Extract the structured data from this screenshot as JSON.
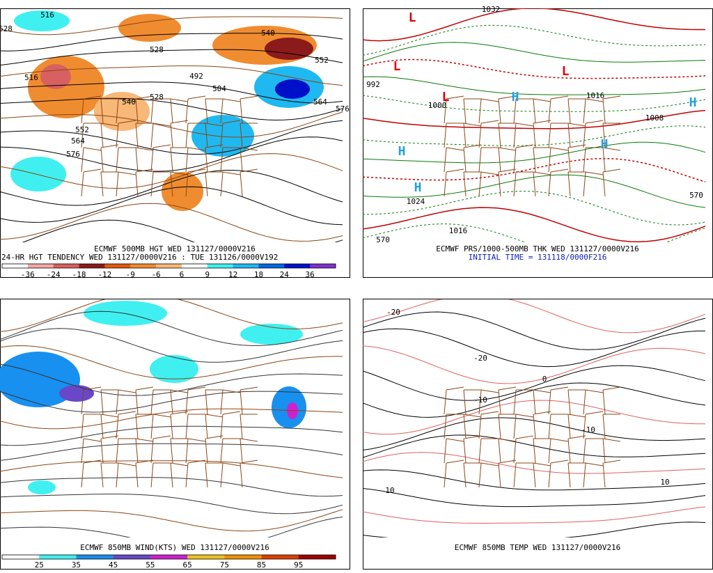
{
  "panels": [
    {
      "caption": "ECMWF 500MB HGT WED 131127/0000V216",
      "subcaption": "24-HR HGT TENDENCY WED 131127/0000V216 : TUE 131126/0000V192",
      "scale": {
        "labels": [
          -36,
          -24,
          -18,
          -12,
          -9,
          -6,
          6,
          9,
          12,
          18,
          24,
          36
        ],
        "colors": [
          "#ffffff",
          "#f4a8a8",
          "#d86060",
          "#8b1a1a",
          "#e05a10",
          "#f08c30",
          "#f8b878",
          "#ffffff",
          "#40f0f0",
          "#20b8f0",
          "#0068e0",
          "#0010c8",
          "#8030d0"
        ]
      },
      "contour_labels": [
        528,
        516,
        516,
        540,
        528,
        552,
        564,
        576,
        492,
        504,
        528,
        540,
        552,
        564,
        576
      ]
    },
    {
      "caption": "ECMWF PRS/1000-500MB THK WED 131127/0000V216",
      "subcaption": "INITIAL TIME = 131118/0000F216",
      "contour_labels": [
        "L",
        "L",
        "L",
        "L",
        "H",
        "H",
        "H",
        "H",
        "H",
        "1024",
        "1016",
        "570",
        "1016",
        "992",
        "1000",
        "1032",
        "1008",
        "570"
      ]
    },
    {
      "caption": "ECMWF 850MB WIND(KTS) WED 131127/0000V216",
      "scale": {
        "labels": [
          25,
          35,
          45,
          55,
          65,
          75,
          85,
          95
        ],
        "colors": [
          "#ffffff",
          "#40f0f0",
          "#1890f0",
          "#6848c8",
          "#d020d0",
          "#f0c020",
          "#f09000",
          "#e04000",
          "#a00000"
        ]
      }
    },
    {
      "caption": "ECMWF 850MB TEMP WED 131127/0000V216",
      "contour_labels": [
        "-20",
        "-10",
        "-10",
        "10",
        "10",
        "0",
        "-20"
      ]
    }
  ]
}
